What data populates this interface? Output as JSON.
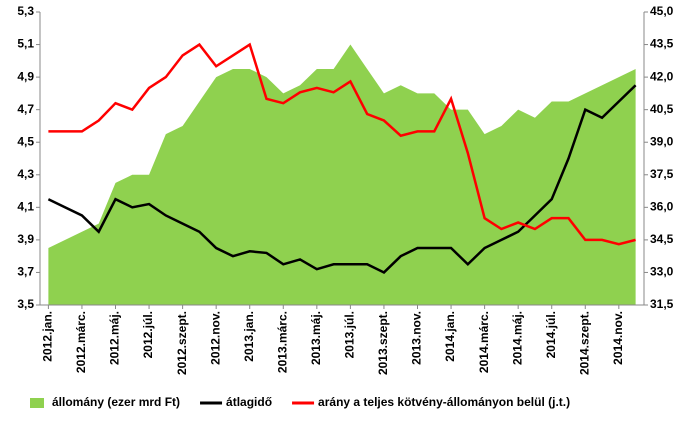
{
  "chart_data": {
    "type": "area_line",
    "categories": [
      "2012.jan.",
      null,
      "2012.márc.",
      null,
      "2012.máj.",
      null,
      "2012.júl.",
      null,
      "2012.szept.",
      null,
      "2012.nov.",
      null,
      "2013.jan.",
      null,
      "2013.márc.",
      null,
      "2013.máj.",
      null,
      "2013.júl.",
      null,
      "2013.szept.",
      null,
      "2013.nov.",
      null,
      "2014.jan.",
      null,
      "2014.márc.",
      null,
      "2014.máj.",
      null,
      "2014.júl.",
      null,
      "2014.szept.",
      null,
      "2014.nov.",
      null
    ],
    "series": [
      {
        "name": "állomány (ezer mrd Ft)",
        "color": "#8fd14f",
        "kind": "area",
        "values": [
          3.85,
          3.9,
          3.95,
          4.0,
          4.25,
          4.3,
          4.3,
          4.55,
          4.6,
          4.75,
          4.9,
          4.95,
          4.95,
          4.9,
          4.8,
          4.85,
          4.95,
          4.95,
          5.1,
          4.95,
          4.8,
          4.85,
          4.8,
          4.8,
          4.7,
          4.7,
          4.55,
          4.6,
          4.7,
          4.65,
          4.75,
          4.75,
          4.8,
          4.85,
          4.9,
          4.95
        ]
      },
      {
        "name": "átlagidő",
        "color": "#000000",
        "kind": "line",
        "values": [
          4.15,
          4.1,
          4.05,
          3.95,
          4.15,
          4.1,
          4.12,
          4.05,
          4.0,
          3.95,
          3.85,
          3.8,
          3.83,
          3.82,
          3.75,
          3.78,
          3.72,
          3.75,
          3.75,
          3.75,
          3.7,
          3.8,
          3.85,
          3.85,
          3.85,
          3.75,
          3.85,
          3.9,
          3.95,
          4.05,
          4.15,
          4.4,
          4.7,
          4.65,
          4.75,
          4.85
        ]
      },
      {
        "name": "arány a teljes kötvény-állományon belül (j.t.)",
        "color": "#ff0000",
        "kind": "line",
        "axis": "y2",
        "values": [
          39.5,
          39.5,
          39.5,
          40.0,
          40.8,
          40.5,
          41.5,
          42.0,
          43.0,
          43.5,
          42.5,
          43.0,
          43.5,
          41.0,
          40.8,
          41.3,
          41.5,
          41.3,
          41.8,
          40.3,
          40.0,
          39.3,
          39.5,
          39.5,
          41.0,
          38.5,
          35.5,
          35.0,
          35.3,
          35.0,
          35.5,
          35.5,
          34.5,
          34.5,
          34.3,
          34.5
        ]
      }
    ],
    "ylim": [
      3.5,
      5.3
    ],
    "yticks": [
      {
        "value": 3.5,
        "label": "3,5"
      },
      {
        "value": 3.7,
        "label": "3,7"
      },
      {
        "value": 3.9,
        "label": "3,9"
      },
      {
        "value": 4.1,
        "label": "4,1"
      },
      {
        "value": 4.3,
        "label": "4,3"
      },
      {
        "value": 4.5,
        "label": "4,5"
      },
      {
        "value": 4.7,
        "label": "4,7"
      },
      {
        "value": 4.9,
        "label": "4,9"
      },
      {
        "value": 5.1,
        "label": "5,1"
      },
      {
        "value": 5.3,
        "label": "5,3"
      }
    ],
    "y2lim": [
      31.5,
      45.0
    ],
    "y2ticks": [
      {
        "value": 31.5,
        "label": "31,5"
      },
      {
        "value": 33.0,
        "label": "33,0"
      },
      {
        "value": 34.5,
        "label": "34,5"
      },
      {
        "value": 36.0,
        "label": "36,0"
      },
      {
        "value": 37.5,
        "label": "37,5"
      },
      {
        "value": 39.0,
        "label": "39,0"
      },
      {
        "value": 40.5,
        "label": "40,5"
      },
      {
        "value": 42.0,
        "label": "42,0"
      },
      {
        "value": 43.5,
        "label": "43,5"
      },
      {
        "value": 45.0,
        "label": "45,0"
      }
    ],
    "legend": "bottom"
  }
}
